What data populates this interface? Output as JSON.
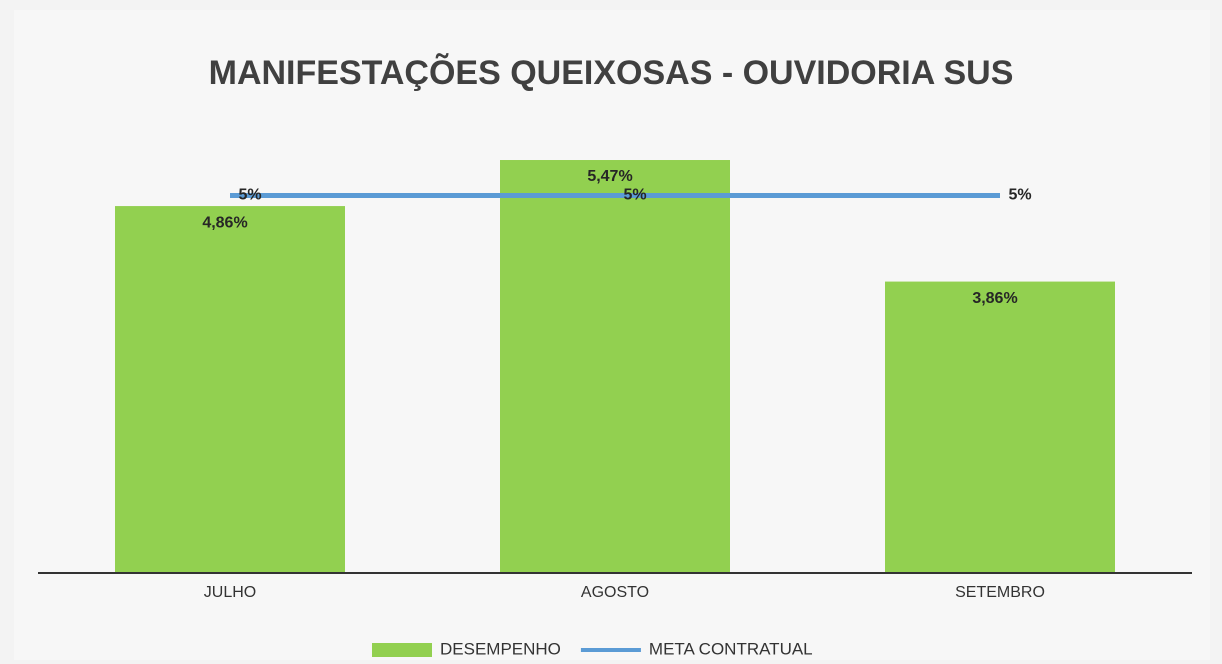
{
  "chart_data": {
    "type": "bar",
    "title": "MANIFESTAÇÕES QUEIXOSAS - OUVIDORIA SUS",
    "categories": [
      "JULHO",
      "AGOSTO",
      "SETEMBRO"
    ],
    "series": [
      {
        "name": "DESEMPENHO",
        "type": "bar",
        "color": "#92d050",
        "values": [
          4.86,
          5.47,
          3.86
        ],
        "value_labels": [
          "4,86%",
          "5,47%",
          "3,86%"
        ]
      },
      {
        "name": "META CONTRATUAL",
        "type": "line",
        "color": "#5b9bd5",
        "values": [
          5,
          5,
          5
        ],
        "value_labels": [
          "5%",
          "5%",
          "5%"
        ]
      }
    ],
    "ylim": [
      0,
      6
    ],
    "legend": "bottom"
  }
}
